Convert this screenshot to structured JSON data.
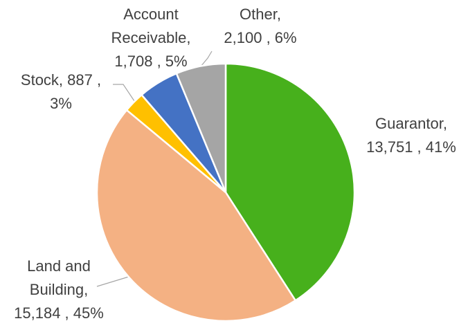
{
  "chart_data": {
    "type": "pie",
    "values": [
      13751,
      15184,
      887,
      1708,
      2100
    ],
    "value_labels": [
      [
        "Guarantor,",
        "13,751 , 41%"
      ],
      [
        "Land and",
        "Building,",
        "15,184 , 45%"
      ],
      [
        "Stock,  887 ,",
        "3%"
      ],
      [
        "Account",
        "Receivable,",
        "1,708 , 5%"
      ],
      [
        "Other,",
        "2,100 , 6%"
      ]
    ],
    "colors": [
      "#47b01c",
      "#f4b183",
      "#ffc000",
      "#4472c4",
      "#a5a5a5"
    ]
  }
}
